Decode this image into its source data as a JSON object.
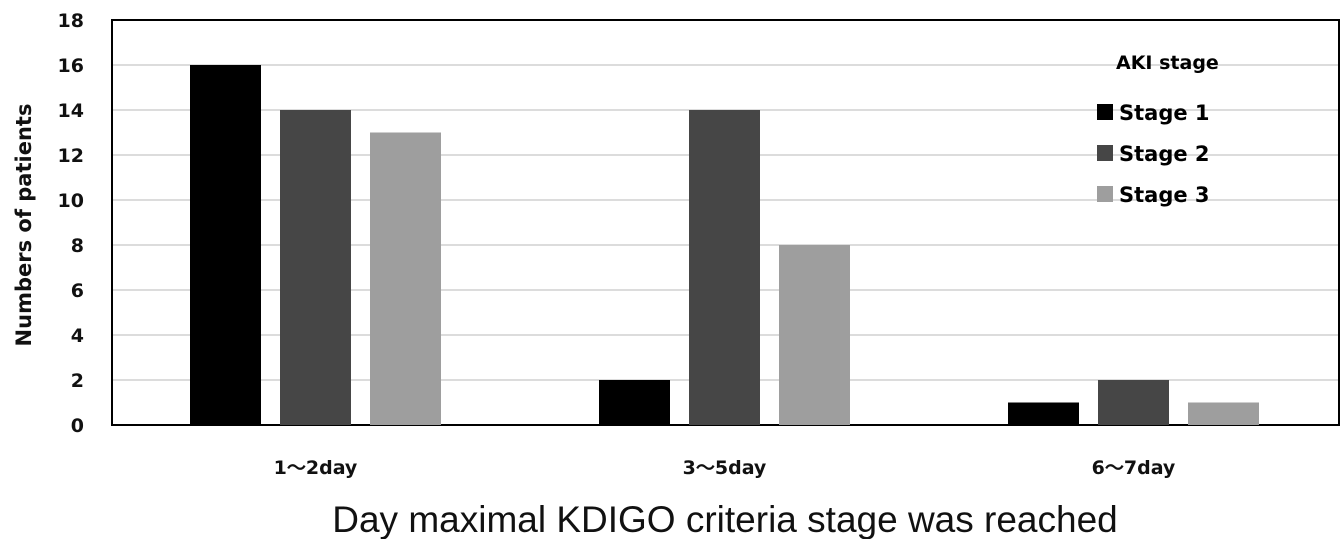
{
  "chart_data": {
    "type": "bar",
    "title": "",
    "xlabel": "Day maximal KDIGO criteria stage was reached",
    "ylabel": "Numbers of patients",
    "ylim": [
      0,
      18
    ],
    "yticks": [
      0,
      2,
      4,
      6,
      8,
      10,
      12,
      14,
      16,
      18
    ],
    "grid": true,
    "legend": {
      "title": "AKI stage",
      "placement": "top-right"
    },
    "categories": [
      "1～2day",
      "3～5day",
      "6～7day"
    ],
    "series": [
      {
        "name": "Stage 1",
        "color": "#000000",
        "values": [
          16,
          2,
          1
        ]
      },
      {
        "name": "Stage 2",
        "color": "#464646",
        "values": [
          14,
          14,
          2
        ]
      },
      {
        "name": "Stage 3",
        "color": "#9e9e9e",
        "values": [
          13,
          8,
          1
        ]
      }
    ]
  }
}
